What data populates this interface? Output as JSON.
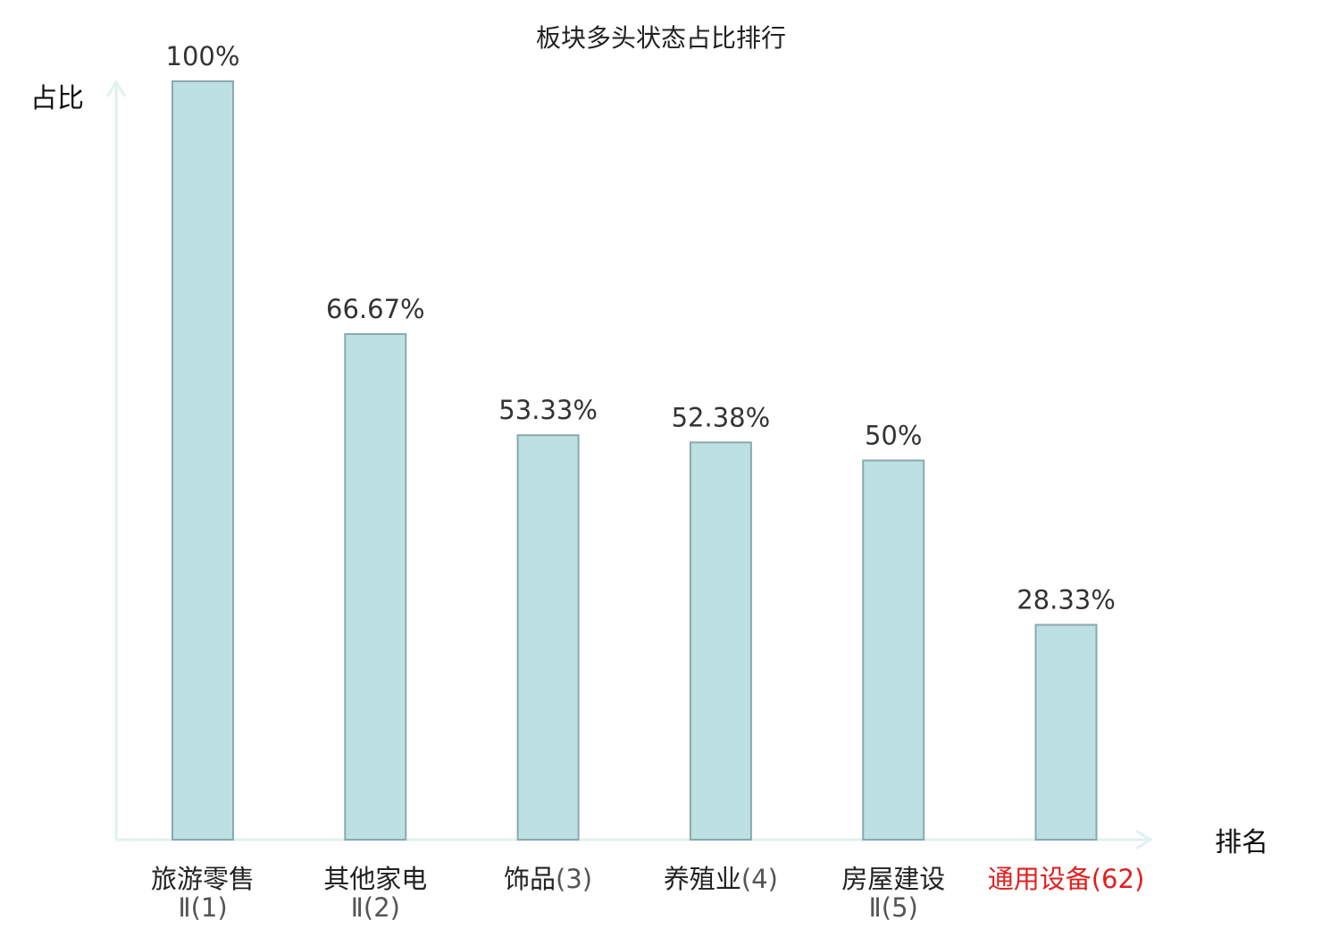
{
  "chart_data": {
    "type": "bar",
    "title": "板块多头状态占比排行",
    "ylabel": "占比",
    "xlabel": "排名",
    "ylim": [
      0,
      100
    ],
    "grid": false,
    "categories": [
      {
        "name": "旅游零售",
        "rank": "Ⅱ(1)",
        "highlight": false
      },
      {
        "name": "其他家电",
        "rank": "Ⅱ(2)",
        "highlight": false
      },
      {
        "name": "饰品",
        "rank": "(3)",
        "highlight": false
      },
      {
        "name": "养殖业",
        "rank": "(4)",
        "highlight": false
      },
      {
        "name": "房屋建设",
        "rank": "Ⅱ(5)",
        "highlight": false
      },
      {
        "name": "通用设备",
        "rank": "(62)",
        "highlight": true
      }
    ],
    "values": [
      100,
      66.67,
      53.33,
      52.38,
      50,
      28.33
    ],
    "value_labels": [
      "100%",
      "66.67%",
      "53.33%",
      "52.38%",
      "50%",
      "28.33%"
    ],
    "colors": {
      "bar_fill": "#bde0e3",
      "bar_stroke": "#8aa9ad",
      "axis": "#dff2ef",
      "highlight": "#e02020",
      "rank_text": "#555555"
    }
  }
}
